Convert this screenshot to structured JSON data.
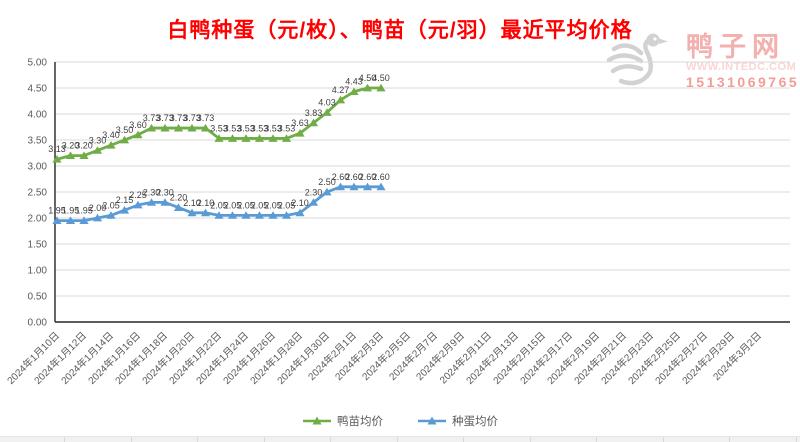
{
  "title": "白鸭种蛋（元/枚）、鸭苗（元/羽）最近平均价格",
  "watermark": {
    "site_name": "鸭子网",
    "url": "WWW.INTEDC.COM",
    "phone": "15131069765",
    "duck_icon_color": "#d2d2d2"
  },
  "colors": {
    "title_red": "#fe0000",
    "duckling_green": "#70ad47",
    "egg_blue": "#5b9bd5",
    "gridline": "#d9d9d9",
    "axis": "#262626",
    "tick_label": "#595959",
    "data_label": "#3f3f3f"
  },
  "chart_data": {
    "type": "line",
    "title": "白鸭种蛋（元/枚）、鸭苗（元/羽）最近平均价格",
    "xlabel": "",
    "ylabel": "",
    "ylim": [
      0,
      5
    ],
    "y_tick_step": 0.5,
    "y_tick_labels": [
      "0.00",
      "0.50",
      "1.00",
      "1.50",
      "2.00",
      "2.50",
      "3.00",
      "3.50",
      "4.00",
      "4.50",
      "5.00"
    ],
    "grid": true,
    "data_labels": true,
    "marker": "triangle",
    "legend_position": "bottom",
    "days_per_tick": 2,
    "x_tick_labels": [
      "2024年1月10日",
      "2024年1月12日",
      "2024年1月14日",
      "2024年1月16日",
      "2024年1月18日",
      "2024年1月20日",
      "2024年1月22日",
      "2024年1月24日",
      "2024年1月26日",
      "2024年1月28日",
      "2024年1月30日",
      "2024年2月1日",
      "2024年2月3日",
      "2024年2月5日",
      "2024年2月7日",
      "2024年2月9日",
      "2024年2月11日",
      "2024年2月13日",
      "2024年2月15日",
      "2024年2月17日",
      "2024年2月19日",
      "2024年2月21日",
      "2024年2月23日",
      "2024年2月25日",
      "2024年2月27日",
      "2024年2月29日",
      "2024年3月2日"
    ],
    "series": [
      {
        "id": "duckling-avg-price",
        "name": "鸭苗均价",
        "color": "#70ad47",
        "values": [
          3.13,
          3.2,
          3.2,
          3.3,
          3.4,
          3.5,
          3.6,
          3.73,
          3.73,
          3.73,
          3.73,
          3.73,
          3.53,
          3.53,
          3.53,
          3.53,
          3.53,
          3.53,
          3.63,
          3.83,
          4.03,
          4.27,
          4.43,
          4.5,
          4.5
        ]
      },
      {
        "id": "egg-avg-price",
        "name": "种蛋均价",
        "color": "#5b9bd5",
        "values": [
          1.95,
          1.95,
          1.95,
          2.0,
          2.05,
          2.15,
          2.25,
          2.3,
          2.3,
          2.2,
          2.1,
          2.1,
          2.05,
          2.05,
          2.05,
          2.05,
          2.05,
          2.05,
          2.1,
          2.3,
          2.5,
          2.6,
          2.6,
          2.6,
          2.6
        ]
      }
    ]
  },
  "legend": {
    "items": [
      {
        "label": "鸭苗均价"
      },
      {
        "label": "种蛋均价"
      }
    ]
  }
}
